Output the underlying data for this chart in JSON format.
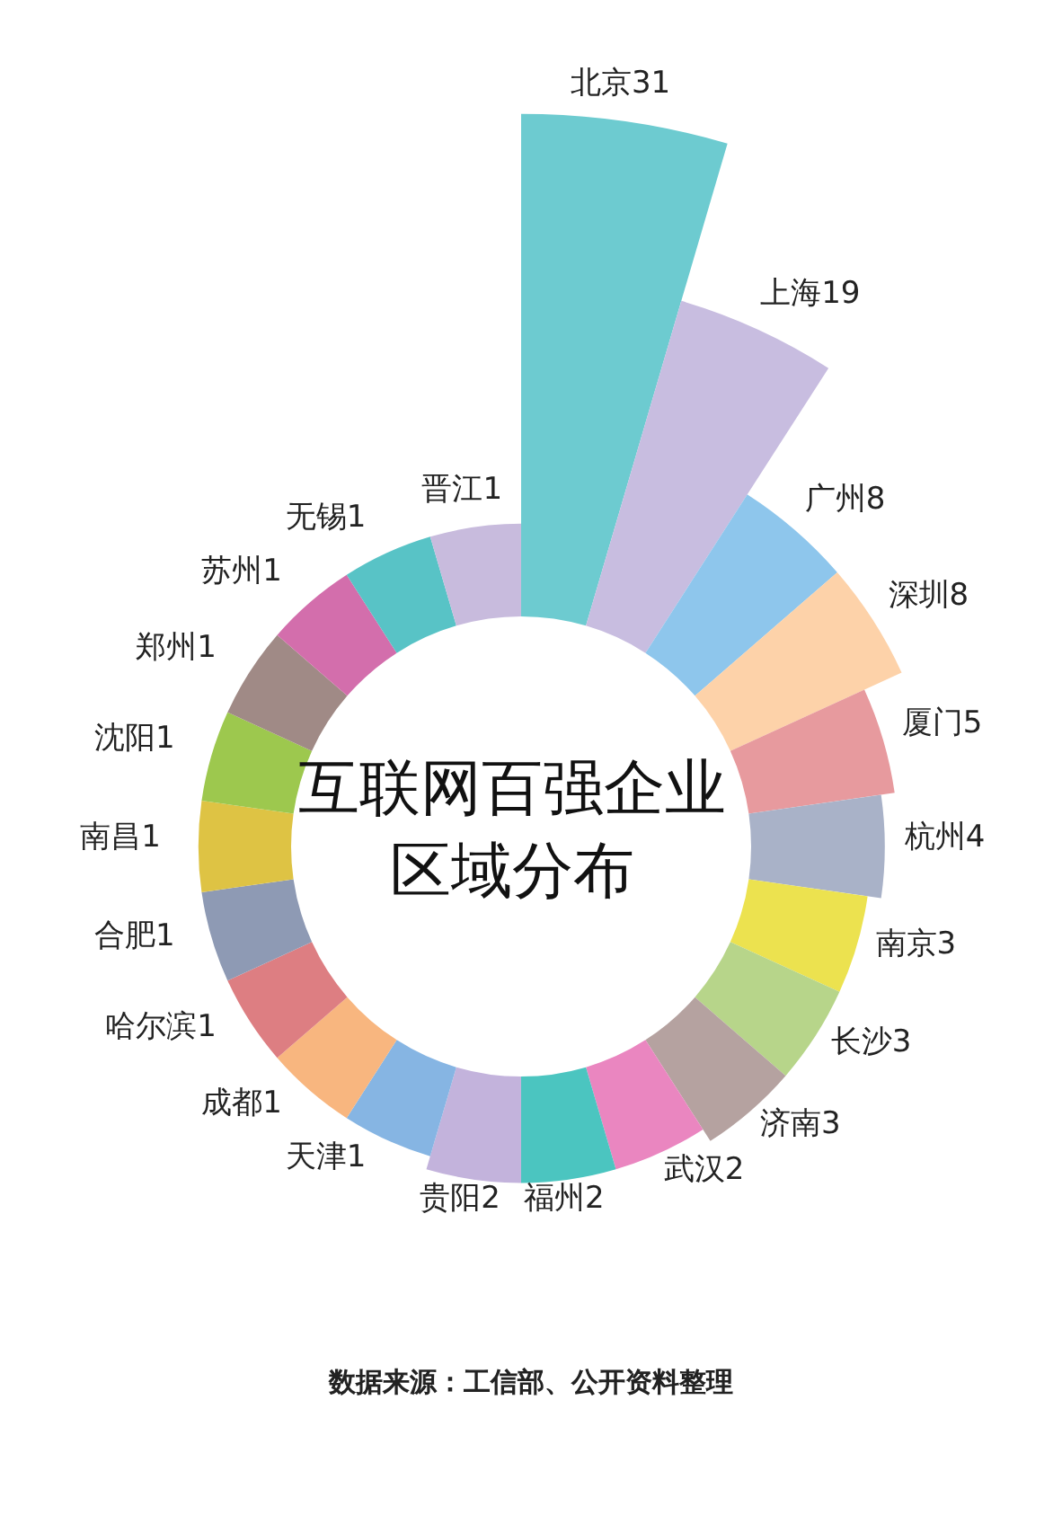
{
  "chart_data": {
    "type": "other",
    "title": "互联网百强企业区域分布",
    "categories": [
      "北京",
      "上海",
      "广州",
      "深圳",
      "厦门",
      "杭州",
      "南京",
      "长沙",
      "济南",
      "武汉",
      "福州",
      "贵阳",
      "天津",
      "成都",
      "哈尔滨",
      "合肥",
      "南昌",
      "沈阳",
      "郑州",
      "苏州",
      "无锡",
      "晋江"
    ],
    "values": [
      31,
      19,
      8,
      8,
      5,
      4,
      3,
      3,
      3,
      2,
      2,
      2,
      1,
      1,
      1,
      1,
      1,
      1,
      1,
      1,
      1,
      1
    ],
    "colors": [
      "#6dcbd0",
      "#c8bde0",
      "#8ec6ec",
      "#fdd2a9",
      "#e79a9e",
      "#a9b2c8",
      "#ece24f",
      "#b7d58a",
      "#b5a2a0",
      "#ea86c0",
      "#4bc5c0",
      "#c3b3dc",
      "#86b5e3",
      "#f8b67f",
      "#dd7e82",
      "#8e9ab4",
      "#dec344",
      "#9dc84e",
      "#a08a86",
      "#d36eac",
      "#58c3c6",
      "#c8bbdd"
    ],
    "data_labels": true,
    "annotations": [
      "数据来源：工信部、公开资料整理"
    ]
  }
}
